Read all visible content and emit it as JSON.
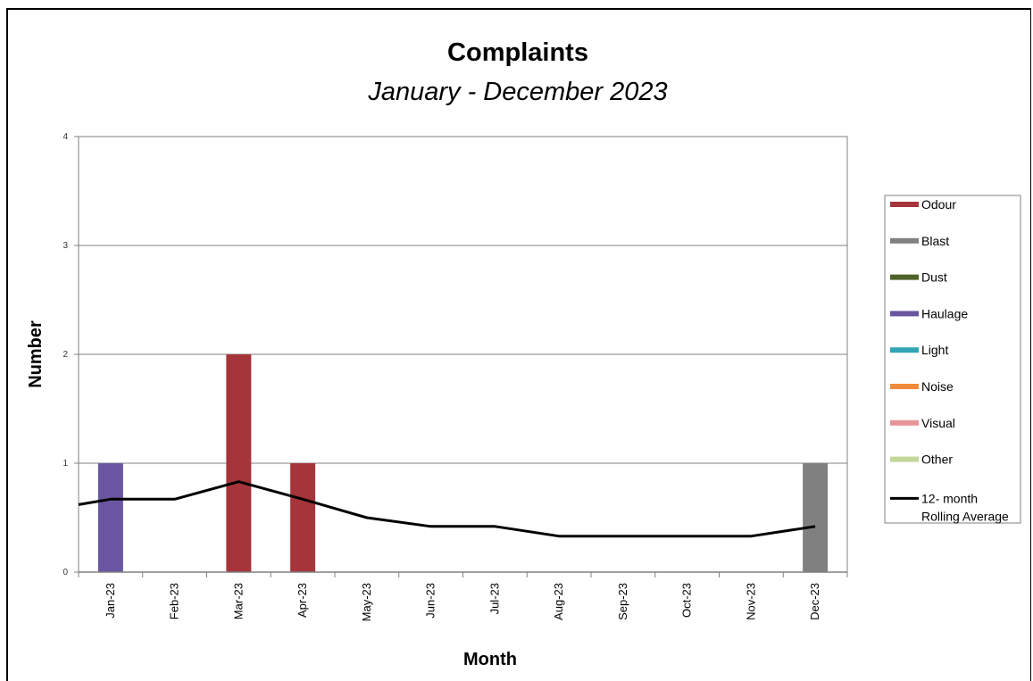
{
  "chart_data": {
    "type": "bar",
    "title": "Complaints",
    "subtitle": "January - December 2023",
    "xlabel": "Month",
    "ylabel": "Number",
    "ylim": [
      0,
      4
    ],
    "yticks": [
      "0",
      "1",
      "2",
      "3",
      "4"
    ],
    "categories": [
      "Jan-23",
      "Feb-23",
      "Mar-23",
      "Apr-23",
      "May-23",
      "Jun-23",
      "Jul-23",
      "Aug-23",
      "Sep-23",
      "Oct-23",
      "Nov-23",
      "Dec-23"
    ],
    "grid": true,
    "legend_position": "right",
    "series": [
      {
        "name": "Other",
        "color": "#c4d79b",
        "values": [
          0,
          0,
          0,
          0,
          0,
          0,
          0,
          0,
          0,
          0,
          0,
          0
        ]
      },
      {
        "name": "Visual",
        "color": "#e6959a",
        "values": [
          0,
          0,
          0,
          0,
          0,
          0,
          0,
          0,
          0,
          0,
          0,
          0
        ]
      },
      {
        "name": "Noise",
        "color": "#f18b3c",
        "values": [
          0,
          0,
          0,
          0,
          0,
          0,
          0,
          0,
          0,
          0,
          0,
          0
        ]
      },
      {
        "name": "Light",
        "color": "#31a5b5",
        "values": [
          0,
          0,
          0,
          0,
          0,
          0,
          0,
          0,
          0,
          0,
          0,
          0
        ]
      },
      {
        "name": "Haulage",
        "color": "#6a55a0",
        "values": [
          1,
          0,
          0,
          0,
          0,
          0,
          0,
          0,
          0,
          0,
          0,
          0
        ]
      },
      {
        "name": "Dust",
        "color": "#4f6228",
        "values": [
          0,
          0,
          0,
          0,
          0,
          0,
          0,
          0,
          0,
          0,
          0,
          0
        ]
      },
      {
        "name": "Blast",
        "color": "#808080",
        "values": [
          0,
          0,
          0,
          0,
          0,
          0,
          0,
          0,
          0,
          0,
          0,
          1
        ]
      },
      {
        "name": "Odour",
        "color": "#a6353b",
        "values": [
          0,
          0,
          2,
          1,
          0,
          0,
          0,
          0,
          0,
          0,
          0,
          0
        ]
      }
    ],
    "rolling_average": {
      "name": "12- month Rolling Average",
      "name_lines": [
        "12- month",
        "Rolling Average"
      ],
      "color": "#000000",
      "x_start": 0.62,
      "values": [
        0.67,
        0.67,
        0.83,
        0.67,
        0.5,
        0.42,
        0.42,
        0.33,
        0.33,
        0.33,
        0.33,
        0.42
      ]
    }
  }
}
